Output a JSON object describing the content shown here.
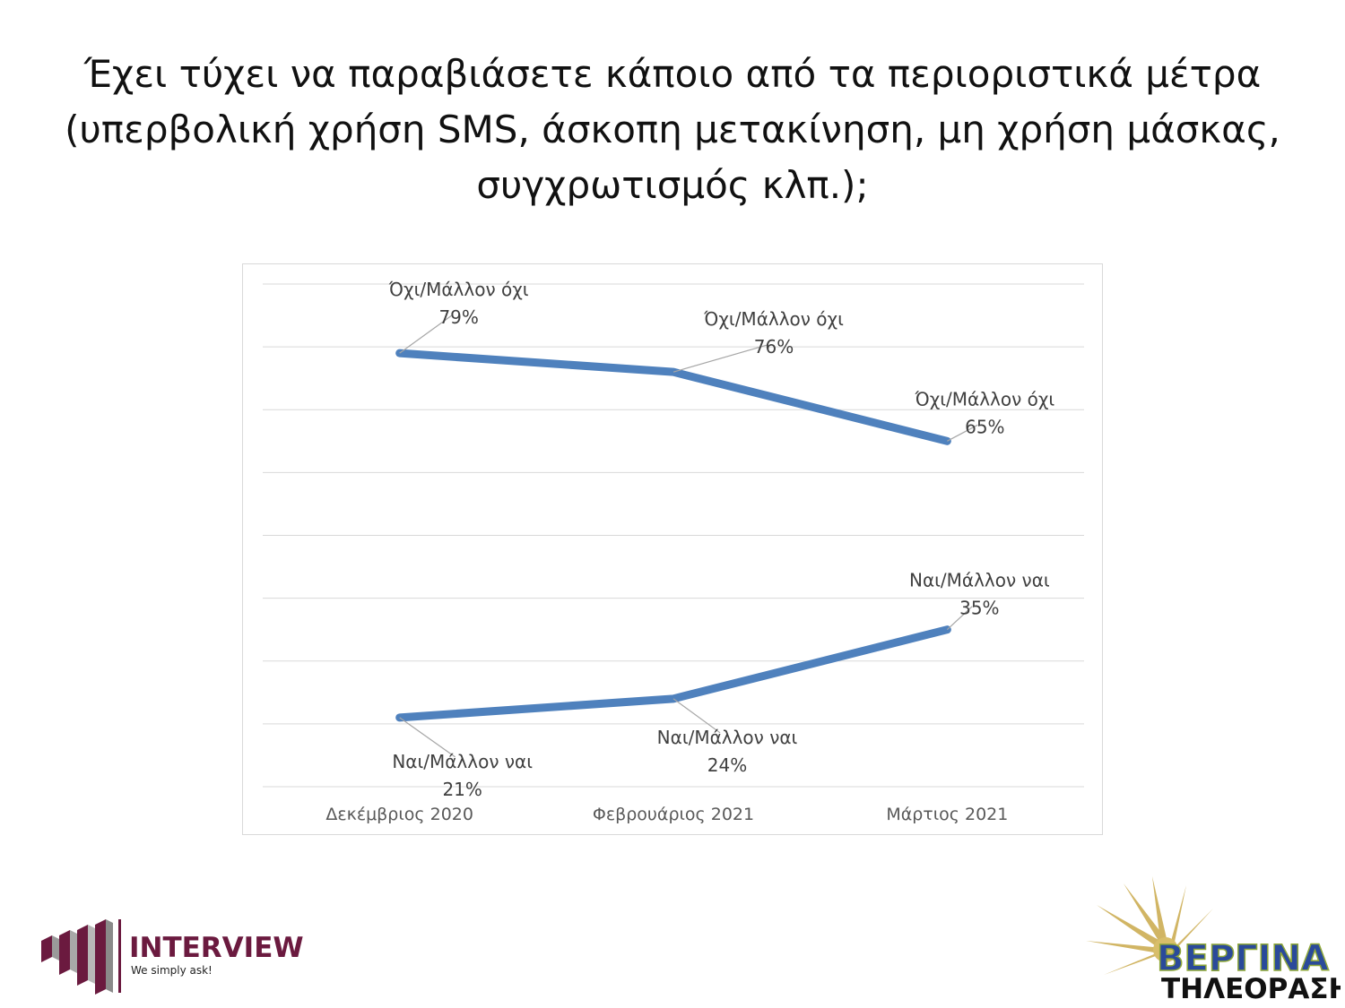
{
  "title_lines": [
    "Έχει τύχει να παραβιάσετε κάποιο από τα περιοριστικά μέτρα",
    "(υπερβολική χρήση SMS, άσκοπη μετακίνηση, μη χρήση μάσκας,",
    "συγχρωτισμός κλπ.);"
  ],
  "chart_data": {
    "type": "line",
    "title": "",
    "xlabel": "",
    "ylabel": "",
    "categories": [
      "Δεκέμβριος 2020",
      "Φεβρουάριος 2021",
      "Μάρτιος 2021"
    ],
    "ylim": [
      10,
      90
    ],
    "grid": true,
    "legend": "none",
    "series": [
      {
        "name": "Όχι/Μάλλον όχι",
        "values": [
          79,
          76,
          65
        ],
        "labels": [
          "79%",
          "76%",
          "65%"
        ],
        "color": "#4f81bd"
      },
      {
        "name": "Ναι/Μάλλον ναι",
        "values": [
          21,
          24,
          35
        ],
        "labels": [
          "21%",
          "24%",
          "35%"
        ],
        "color": "#4f81bd"
      }
    ]
  },
  "logos": {
    "interview": {
      "name": "INTERVIEW",
      "tagline": "We simply ask!",
      "color": "#6b1a3f"
    },
    "vergina": {
      "name": "ΒΕΡΓΙΝΑ",
      "subtitle": "ΤΗΛΕΟΡΑΣΗ",
      "color": "#2a4a9a"
    }
  }
}
